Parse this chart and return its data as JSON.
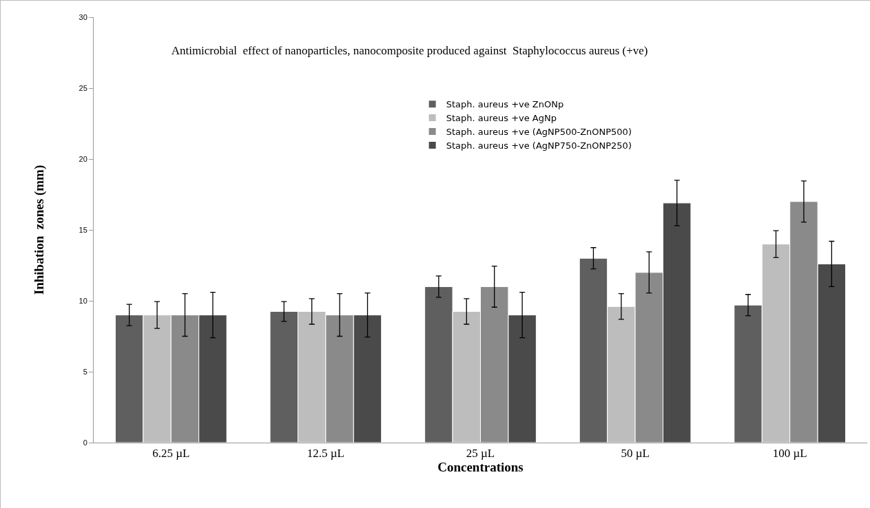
{
  "chart_data": {
    "type": "bar",
    "title": "Antimicrobial  effect of nanoparticles, nanocomposite produced against  Staphylococcus aureus (+ve)",
    "xlabel": "Concentrations",
    "ylabel": "Inhibation  zones (mm)",
    "categories": [
      "6.25 µL",
      "12.5 µL",
      "25 µL",
      "50 µL",
      "100 µL"
    ],
    "series": [
      {
        "name": "Staph. aureus +ve ZnONp",
        "color": "#5f5f5f",
        "values": [
          9,
          9.25,
          11,
          13,
          9.7
        ],
        "errors": [
          0.75,
          0.7,
          0.75,
          0.75,
          0.75
        ]
      },
      {
        "name": "Staph. aureus +ve AgNp",
        "color": "#bdbdbd",
        "values": [
          9,
          9.25,
          9.25,
          9.6,
          14
        ],
        "errors": [
          0.95,
          0.9,
          0.9,
          0.9,
          0.95
        ]
      },
      {
        "name": "Staph. aureus +ve (AgNP500-ZnONP500)",
        "color": "#8a8a8a",
        "values": [
          9,
          9,
          11,
          12,
          17
        ],
        "errors": [
          1.5,
          1.5,
          1.45,
          1.45,
          1.45
        ]
      },
      {
        "name": "Staph. aureus +ve (AgNP750-ZnONP250)",
        "color": "#4a4a4a",
        "values": [
          9,
          9,
          9,
          16.9,
          12.6
        ],
        "errors": [
          1.6,
          1.55,
          1.6,
          1.6,
          1.6
        ]
      }
    ],
    "ylim": [
      0,
      30
    ],
    "yticks": [
      0,
      5,
      10,
      15,
      20,
      25,
      30
    ],
    "grid": false,
    "legend": "top"
  }
}
